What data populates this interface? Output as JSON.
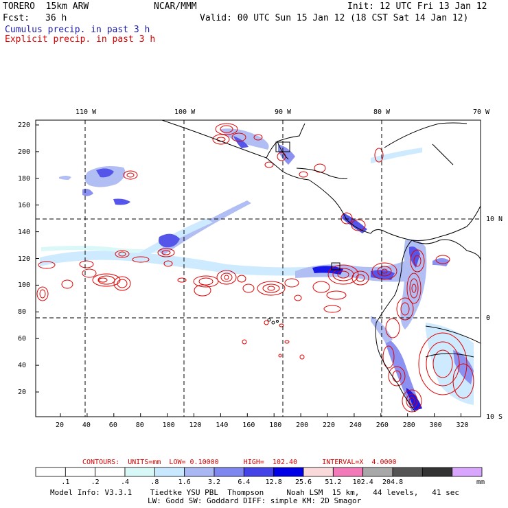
{
  "header": {
    "model": "TORERO  15km ARW",
    "org": "NCAR/MMM",
    "init": "Init: 12 UTC Fri 13 Jan 12",
    "fcst_label": "Fcst:",
    "fcst_value": "36 h",
    "valid": "Valid: 00 UTC Sun 15 Jan 12 (18 CST Sat 14 Jan 12)",
    "field1": "Cumulus precip. in past 3 h",
    "field2": "Explicit precip. in past 3 h"
  },
  "colors": {
    "field1": "#1a1aa6",
    "field2": "#d60000",
    "contour": "#e00000",
    "coast": "#000000"
  },
  "map": {
    "top_lon_labels": [
      "110 W",
      "100 W",
      "90 W",
      "80 W",
      "70 W"
    ],
    "right_lat_labels": [
      "10 N",
      "0",
      "10 S"
    ],
    "y_ticks": [
      "220",
      "200",
      "180",
      "160",
      "140",
      "120",
      "100",
      "80",
      "60",
      "40",
      "20"
    ],
    "x_ticks": [
      "20",
      "40",
      "60",
      "80",
      "100",
      "120",
      "140",
      "160",
      "180",
      "200",
      "220",
      "240",
      "260",
      "280",
      "300",
      "320"
    ]
  },
  "contour_info": {
    "text": "CONTOURS:  UNITS=mm  LOW= 0.10000      HIGH=  102.40      INTERVAL=X  4.0000"
  },
  "colorbar": {
    "labels": [
      ".1",
      ".2",
      ".4",
      ".8",
      "1.6",
      "3.2",
      "6.4",
      "12.8",
      "25.6",
      "51.2",
      "102.4",
      "204.8"
    ],
    "unit": "mm",
    "colors": [
      "#ffffff",
      "#ffffff",
      "#ffffff",
      "#d8f8f8",
      "#c8e8ff",
      "#a9b8f2",
      "#7e86ef",
      "#4343e8",
      "#0000e6",
      "#f9d9d9",
      "#f27ab8",
      "#a8a8a8",
      "#555555",
      "#333333",
      "#d9a6ff"
    ]
  },
  "model_info": {
    "line1": "Model Info: V3.3.1    Tiedtke YSU PBL  Thompson     Noah LSM  15 km,   44 levels,   41 sec",
    "line2": "LW: Godd SW: Goddard DIFF: simple KM: 2D Smagor"
  }
}
